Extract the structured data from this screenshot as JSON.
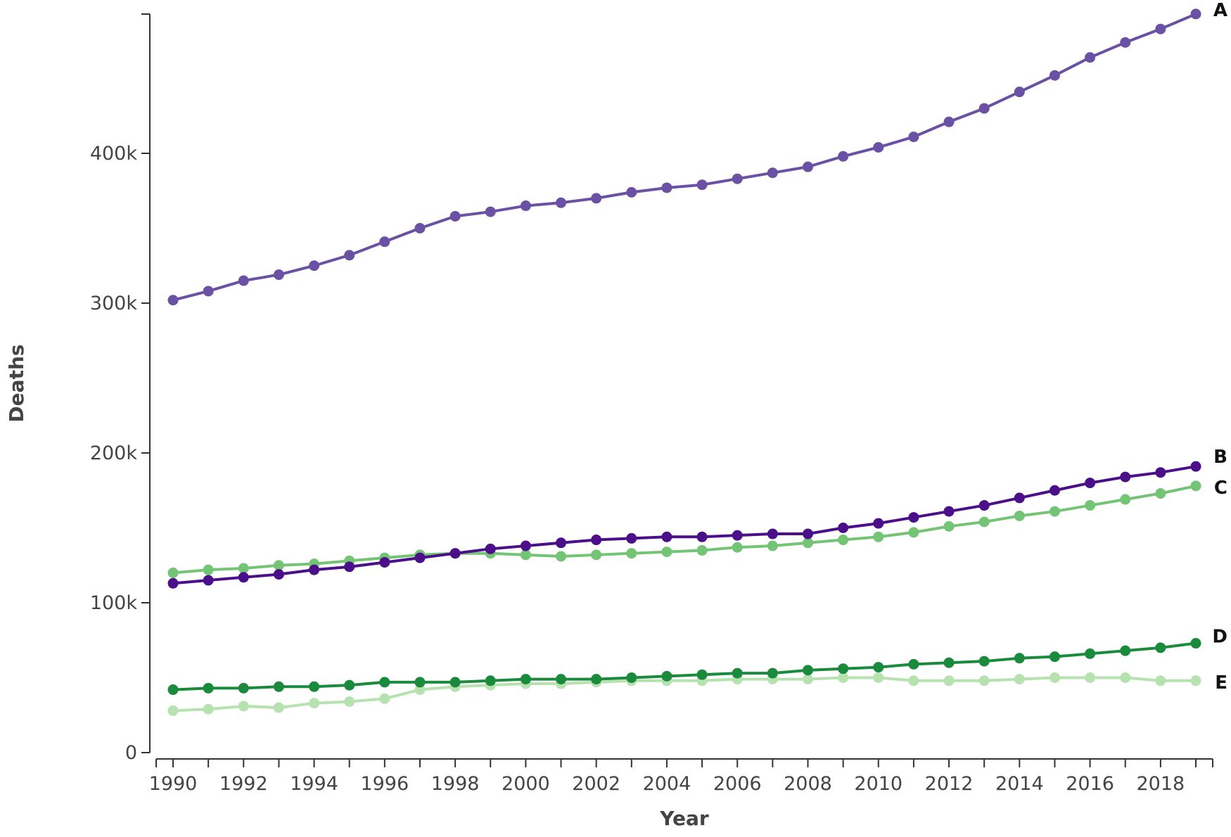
{
  "chart_data": {
    "type": "line",
    "xlabel": "Year",
    "ylabel": "Deaths",
    "x": [
      1990,
      1991,
      1992,
      1993,
      1994,
      1995,
      1996,
      1997,
      1998,
      1999,
      2000,
      2001,
      2002,
      2003,
      2004,
      2005,
      2006,
      2007,
      2008,
      2009,
      2010,
      2011,
      2012,
      2013,
      2014,
      2015,
      2016,
      2017,
      2018,
      2019
    ],
    "x_tick_labels": [
      "1990",
      "1992",
      "1994",
      "1996",
      "1998",
      "2000",
      "2002",
      "2004",
      "2006",
      "2008",
      "2010",
      "2012",
      "2014",
      "2016",
      "2018"
    ],
    "y_ticks": [
      0,
      100000,
      200000,
      300000,
      400000
    ],
    "y_tick_labels": [
      "0",
      "100k",
      "200k",
      "300k",
      "400k"
    ],
    "xlim": [
      1990,
      2019
    ],
    "ylim": [
      0,
      490000
    ],
    "grid": false,
    "series": [
      {
        "name": "A",
        "color": "#6a51a3",
        "values": [
          302000,
          308000,
          315000,
          319000,
          325000,
          332000,
          341000,
          350000,
          358000,
          361000,
          365000,
          367000,
          370000,
          374000,
          377000,
          379000,
          383000,
          387000,
          391000,
          398000,
          404000,
          411000,
          421000,
          430000,
          441000,
          452000,
          464000,
          474000,
          483000,
          493000
        ]
      },
      {
        "name": "B",
        "color": "#4b0f8a",
        "values": [
          113000,
          115000,
          117000,
          119000,
          122000,
          124000,
          127000,
          130000,
          133000,
          136000,
          138000,
          140000,
          142000,
          143000,
          144000,
          144000,
          145000,
          146000,
          146000,
          150000,
          153000,
          157000,
          161000,
          165000,
          170000,
          175000,
          180000,
          184000,
          187000,
          191000
        ]
      },
      {
        "name": "C",
        "color": "#74c476",
        "values": [
          120000,
          122000,
          123000,
          125000,
          126000,
          128000,
          130000,
          132000,
          133000,
          133000,
          132000,
          131000,
          132000,
          133000,
          134000,
          135000,
          137000,
          138000,
          140000,
          142000,
          144000,
          147000,
          151000,
          154000,
          158000,
          161000,
          165000,
          169000,
          173000,
          178000
        ]
      },
      {
        "name": "D",
        "color": "#1a8a3c",
        "values": [
          42000,
          43000,
          43000,
          44000,
          44000,
          45000,
          47000,
          47000,
          47000,
          48000,
          49000,
          49000,
          49000,
          50000,
          51000,
          52000,
          53000,
          53000,
          55000,
          56000,
          57000,
          59000,
          60000,
          61000,
          63000,
          64000,
          66000,
          68000,
          70000,
          73000
        ]
      },
      {
        "name": "E",
        "color": "#b5e2ae",
        "values": [
          28000,
          29000,
          31000,
          30000,
          33000,
          34000,
          36000,
          42000,
          44000,
          45000,
          46000,
          46000,
          47000,
          48000,
          48000,
          48000,
          49000,
          49000,
          49000,
          50000,
          50000,
          48000,
          48000,
          48000,
          49000,
          50000,
          50000,
          50000,
          48000,
          48000
        ]
      }
    ]
  }
}
